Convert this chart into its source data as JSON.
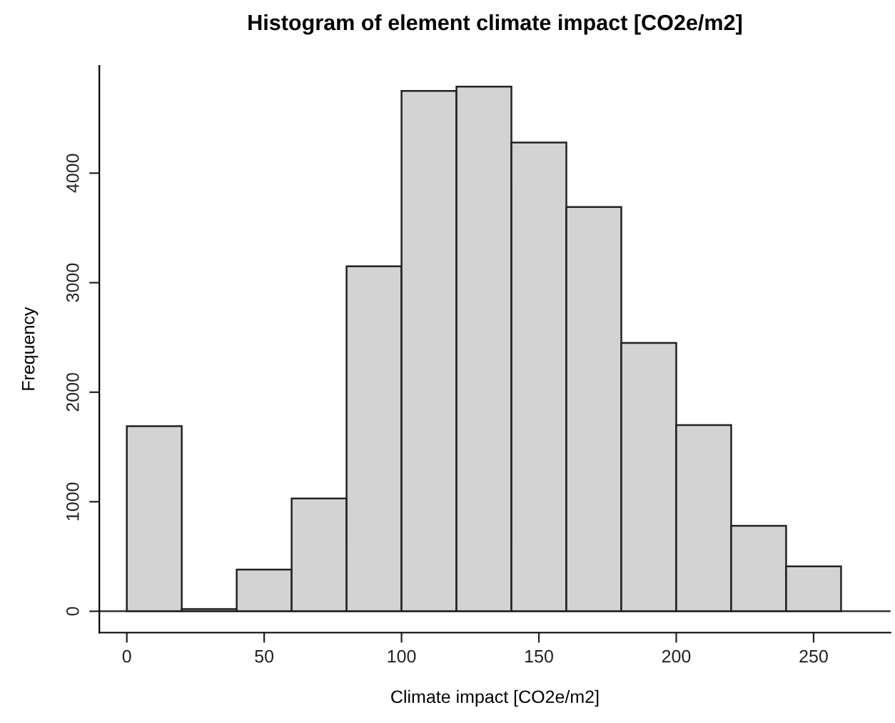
{
  "chart_data": {
    "type": "histogram",
    "title": "Histogram of element climate impact [CO2e/m2]",
    "xlabel": "Climate impact [CO2e/m2]",
    "ylabel": "Frequency",
    "bins": [
      0,
      20,
      40,
      60,
      80,
      100,
      120,
      140,
      160,
      180,
      200,
      220,
      240,
      260
    ],
    "values": [
      1690,
      20,
      380,
      1030,
      3150,
      4750,
      4790,
      4280,
      3690,
      2450,
      1700,
      780,
      410
    ],
    "color": "#d3d3d3",
    "xlim": [
      -10,
      278
    ],
    "xticks": [
      0,
      50,
      100,
      150,
      200,
      250
    ],
    "ylim": [
      -195,
      4980
    ],
    "yticks": [
      0,
      1000,
      2000,
      3000,
      4000
    ],
    "ref_lines": [
      {
        "axis": "y",
        "value": 0,
        "color": "#333333"
      }
    ],
    "grid": false
  }
}
